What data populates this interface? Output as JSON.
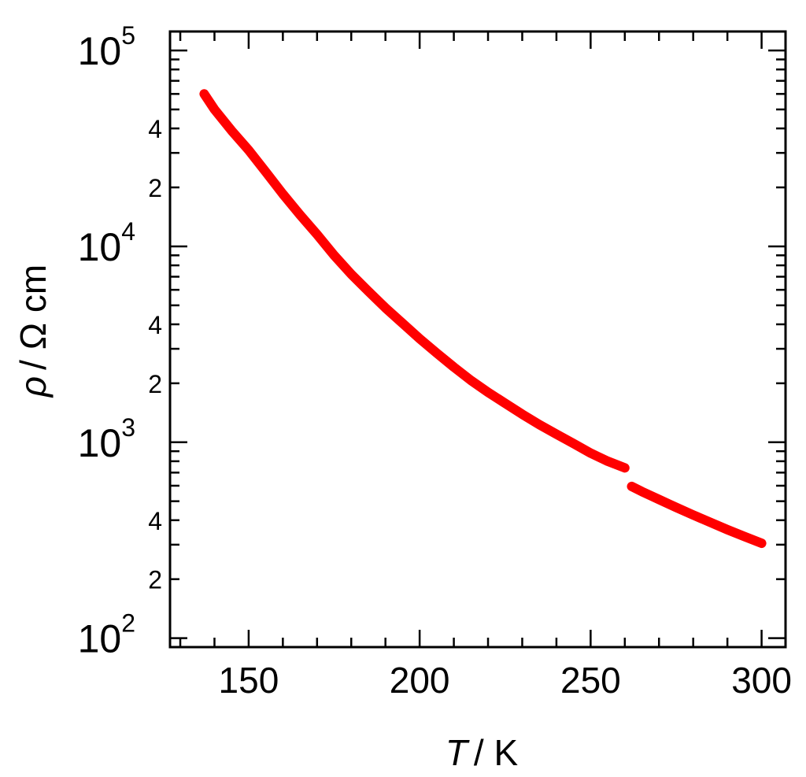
{
  "chart_data": {
    "type": "scatter",
    "title": "",
    "xlabel": {
      "symbol": "T",
      "unit": "/ K"
    },
    "ylabel": {
      "symbol": "ρ",
      "unit": "/ Ω cm"
    },
    "x_scale": "linear",
    "y_scale": "log",
    "xlim": [
      127,
      307
    ],
    "ylim": [
      90,
      125000
    ],
    "x_ticks": [
      150,
      200,
      250,
      300
    ],
    "x_tick_labels": [
      "150",
      "200",
      "250",
      "300"
    ],
    "y_major_ticks": [
      {
        "value": 100,
        "base": "10",
        "exp": "2"
      },
      {
        "value": 1000,
        "base": "10",
        "exp": "3"
      },
      {
        "value": 10000,
        "base": "10",
        "exp": "4"
      },
      {
        "value": 100000,
        "base": "10",
        "exp": "5"
      }
    ],
    "y_minor_labeled": [
      {
        "value": 200,
        "label": "2"
      },
      {
        "value": 400,
        "label": "4"
      },
      {
        "value": 2000,
        "label": "2"
      },
      {
        "value": 4000,
        "label": "4"
      },
      {
        "value": 20000,
        "label": "2"
      },
      {
        "value": 40000,
        "label": "4"
      }
    ],
    "grid": false,
    "legend": "none",
    "series": [
      {
        "color": "#ff0000",
        "x": [
          137,
          140,
          145,
          150,
          155,
          160,
          165,
          170,
          175,
          180,
          185,
          190,
          195,
          200,
          205,
          210,
          215,
          220,
          225,
          230,
          235,
          240,
          245,
          250,
          255,
          260
        ],
        "y": [
          60000,
          50000,
          39000,
          31000,
          24000,
          18500,
          14500,
          11500,
          9000,
          7200,
          5900,
          4850,
          4050,
          3380,
          2850,
          2420,
          2070,
          1800,
          1580,
          1390,
          1230,
          1100,
          985,
          880,
          800,
          740
        ]
      },
      {
        "color": "#ff0000",
        "x": [
          262,
          265,
          270,
          275,
          280,
          285,
          290,
          295,
          300
        ],
        "y": [
          595,
          560,
          510,
          465,
          425,
          390,
          358,
          330,
          305
        ]
      }
    ]
  }
}
